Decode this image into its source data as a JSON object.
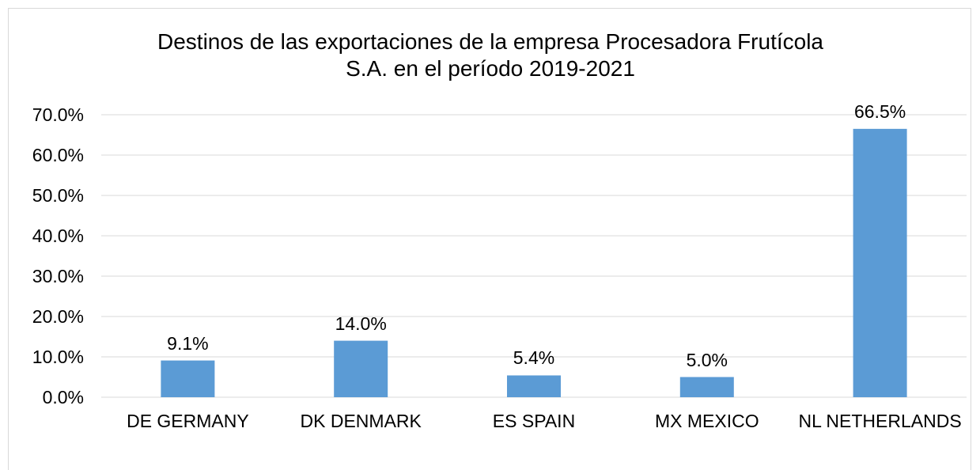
{
  "chart_data": {
    "type": "bar",
    "title": "Destinos de las exportaciones de la empresa Procesadora Frutícola S.A. en el período 2019-2021",
    "categories": [
      "DE GERMANY",
      "DK DENMARK",
      "ES SPAIN",
      "MX MEXICO",
      "NL NETHERLANDS"
    ],
    "values": [
      9.1,
      14.0,
      5.4,
      5.0,
      66.5
    ],
    "value_labels": [
      "9.1%",
      "14.0%",
      "5.4%",
      "5.0%",
      "66.5%"
    ],
    "color": "#5b9bd5",
    "ylim": [
      0,
      70
    ],
    "yticks": [
      {
        "value": 0,
        "label": "0.0%"
      },
      {
        "value": 10,
        "label": "10.0%"
      },
      {
        "value": 20,
        "label": "20.0%"
      },
      {
        "value": 30,
        "label": "30.0%"
      },
      {
        "value": 40,
        "label": "40.0%"
      },
      {
        "value": 50,
        "label": "50.0%"
      },
      {
        "value": 60,
        "label": "60.0%"
      },
      {
        "value": 70,
        "label": "70.0%"
      }
    ],
    "grid": true
  }
}
